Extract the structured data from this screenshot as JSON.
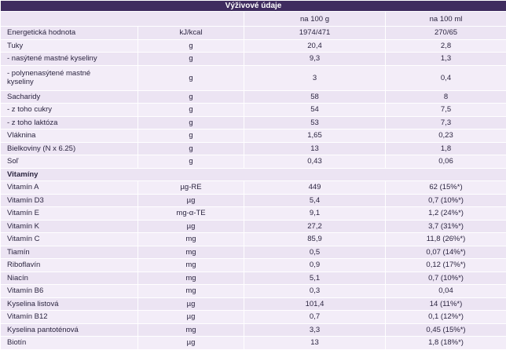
{
  "table": {
    "title": "Výživové údaje",
    "columns": [
      "na 100 g",
      "na 100 ml"
    ],
    "rows": [
      [
        "Energetická hodnota",
        "kJ/kcal",
        "1974/471",
        "270/65"
      ],
      [
        "Tuky",
        "g",
        "20,4",
        "2,8"
      ],
      [
        "- nasýtené mastné kyseliny",
        "g",
        "9,3",
        "1,3"
      ],
      [
        "- polynenasýtené mastné kyseliny",
        "g",
        "3",
        "0,4"
      ],
      [
        "Sacharidy",
        "g",
        "58",
        "8"
      ],
      [
        "- z toho cukry",
        "g",
        "54",
        "7,5"
      ],
      [
        "- z toho laktóza",
        "g",
        "53",
        "7,3"
      ],
      [
        "Vláknina",
        "g",
        "1,65",
        "0,23"
      ],
      [
        "Bielkoviny (N x 6.25)",
        "g",
        "13",
        "1,8"
      ],
      [
        "Soľ",
        "g",
        "0,43",
        "0,06"
      ],
      [
        "Vitamíny"
      ],
      [
        "Vitamín A",
        "µg-RE",
        "449",
        "62 (15%*)"
      ],
      [
        "Vitamín D3",
        "µg",
        "5,4",
        "0,7 (10%*)"
      ],
      [
        "Vitamín E",
        "mg-α-TE",
        "9,1",
        "1,2 (24%*)"
      ],
      [
        "Vitamín K",
        "µg",
        "27,2",
        "3,7 (31%*)"
      ],
      [
        "Vitamín C",
        "mg",
        "85,9",
        "11,8 (26%*)"
      ],
      [
        "Tiamín",
        "mg",
        "0,5",
        "0,07 (14%*)"
      ],
      [
        "Riboflavín",
        "mg",
        "0,9",
        "0,12 (17%*)"
      ],
      [
        "Niacín",
        "mg",
        "5,1",
        "0,7 (10%*)"
      ],
      [
        "Vitamín B6",
        "mg",
        "0,3",
        "0,04"
      ],
      [
        "Kyselina listová",
        "µg",
        "101,4",
        "14 (11%*)"
      ],
      [
        "Vitamín B12",
        "µg",
        "0,7",
        "0,1 (12%*)"
      ],
      [
        "Kyselina pantoténová",
        "mg",
        "3,3",
        "0,45 (15%*)"
      ],
      [
        "Biotín",
        "µg",
        "13",
        "1,8 (18%*)"
      ]
    ]
  }
}
